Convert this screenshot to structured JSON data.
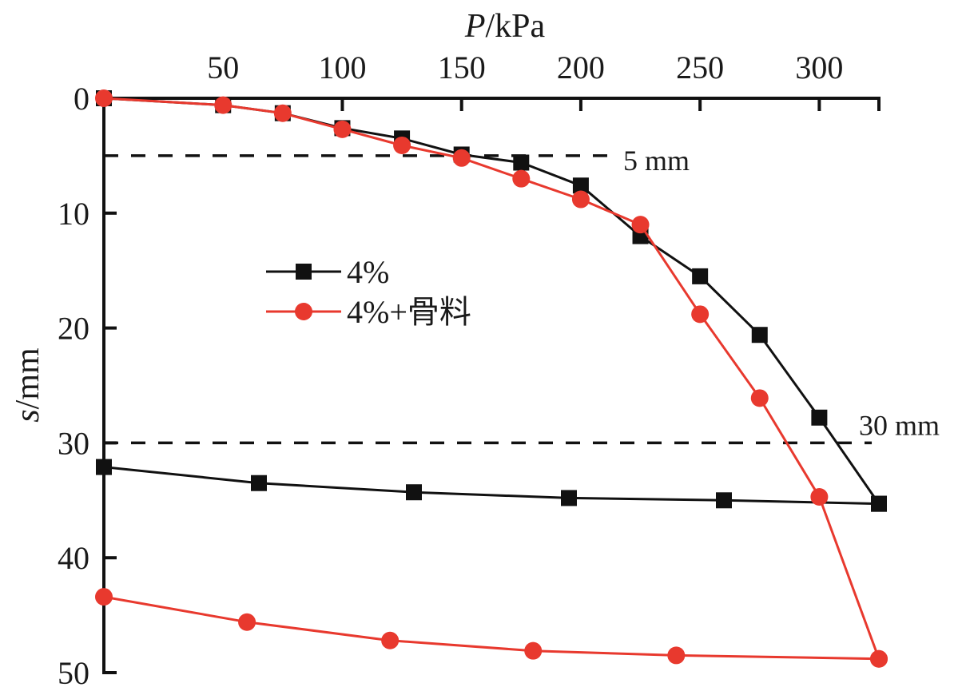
{
  "chart_data": {
    "type": "line",
    "title": "",
    "xlabel": "P/kPa",
    "xlabel_italic_part": "P",
    "xlabel_unit_part": "/kPa",
    "ylabel": "s/mm",
    "ylabel_italic_part": "s",
    "ylabel_unit_part": "/mm",
    "x_axis_position": "top",
    "y_axis_inverted": true,
    "xlim": [
      0,
      325
    ],
    "ylim": [
      0,
      50
    ],
    "xticks": [
      50,
      100,
      150,
      200,
      250,
      300
    ],
    "xtick_labels": [
      "50",
      "100",
      "150",
      "200",
      "250",
      "300"
    ],
    "yticks": [
      0,
      10,
      20,
      30,
      40,
      50
    ],
    "ytick_labels": [
      "0",
      "10",
      "20",
      "30",
      "40",
      "50"
    ],
    "grid": false,
    "legend_position": "center-left",
    "reference_lines": [
      {
        "y": 5,
        "label": "5 mm",
        "x_end": 215
      },
      {
        "y": 30,
        "label": "30 mm",
        "x_end": 322
      }
    ],
    "series": [
      {
        "name": "4%",
        "color": "#111111",
        "marker": "square",
        "loading": {
          "x": [
            0,
            50,
            75,
            100,
            125,
            150,
            175,
            200,
            225,
            250,
            275,
            300,
            325
          ],
          "y": [
            0,
            0.6,
            1.3,
            2.6,
            3.5,
            4.9,
            5.6,
            7.6,
            12.0,
            15.5,
            20.6,
            27.8,
            35.3
          ]
        },
        "unloading": {
          "x": [
            325,
            260,
            195,
            130,
            65,
            0
          ],
          "y": [
            35.3,
            35.0,
            34.8,
            34.3,
            33.5,
            32.1
          ]
        }
      },
      {
        "name": "4%+骨料",
        "color": "#e8392e",
        "marker": "circle",
        "loading": {
          "x": [
            0,
            50,
            75,
            100,
            125,
            150,
            175,
            200,
            225,
            250,
            275,
            300,
            325
          ],
          "y": [
            0,
            0.6,
            1.3,
            2.7,
            4.1,
            5.2,
            7.0,
            8.8,
            11.0,
            18.8,
            26.1,
            34.7,
            48.8
          ]
        },
        "unloading": {
          "x": [
            325,
            240,
            180,
            120,
            60,
            0
          ],
          "y": [
            48.8,
            48.5,
            48.1,
            47.2,
            45.6,
            43.4
          ]
        }
      }
    ]
  }
}
